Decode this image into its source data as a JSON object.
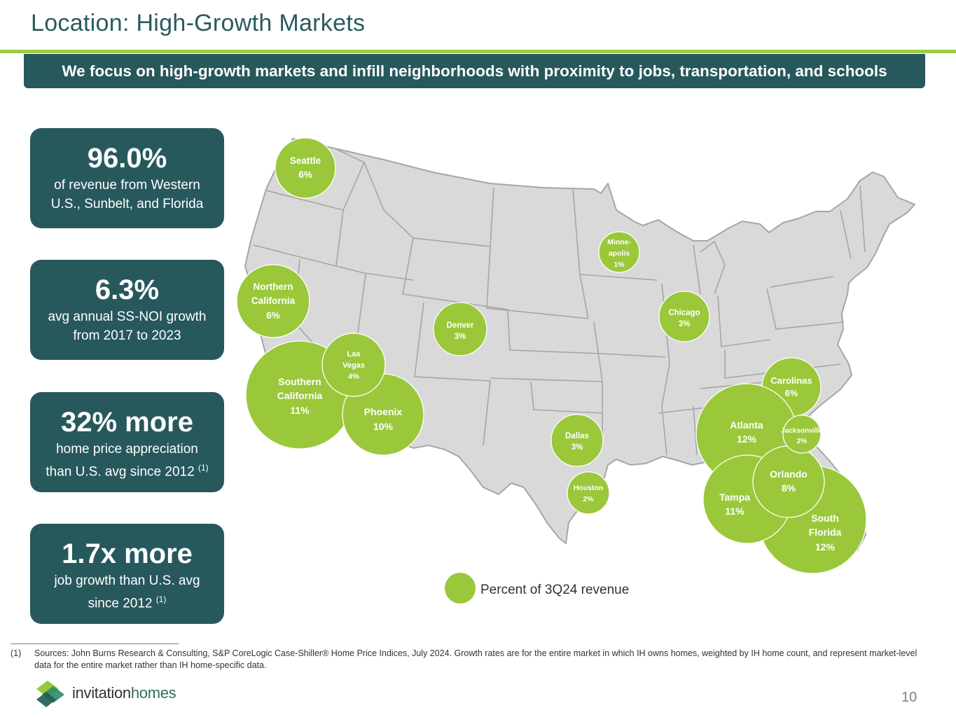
{
  "title": "Location: High-Growth Markets",
  "banner": "We focus on high-growth markets and infill neighborhoods with proximity to jobs, transportation, and schools",
  "stats": [
    {
      "value": "96.0%",
      "desc_lines": [
        "of revenue from Western",
        "U.S., Sunbelt, and Florida"
      ],
      "footnote_ref": ""
    },
    {
      "value": "6.3%",
      "desc_lines": [
        "avg annual SS-NOI growth",
        "from 2017 to 2023"
      ],
      "footnote_ref": ""
    },
    {
      "value": "32% more",
      "desc_lines": [
        "home price appreciation",
        "than U.S. avg since 2012"
      ],
      "footnote_ref": "(1)"
    },
    {
      "value": "1.7x more",
      "desc_lines": [
        "job growth than U.S. avg",
        "since 2012"
      ],
      "footnote_ref": "(1)"
    }
  ],
  "markets": [
    {
      "name_lines": [
        "Seattle"
      ],
      "pct": "6%"
    },
    {
      "name_lines": [
        "Northern",
        "California"
      ],
      "pct": "6%"
    },
    {
      "name_lines": [
        "Southern",
        "California"
      ],
      "pct": "11%"
    },
    {
      "name_lines": [
        "Phoenix"
      ],
      "pct": "10%"
    },
    {
      "name_lines": [
        "Las",
        "Vegas"
      ],
      "pct": "4%"
    },
    {
      "name_lines": [
        "Denver"
      ],
      "pct": "3%"
    },
    {
      "name_lines": [
        "Minne-",
        "apolis"
      ],
      "pct": "1%"
    },
    {
      "name_lines": [
        "Chicago"
      ],
      "pct": "3%"
    },
    {
      "name_lines": [
        "Dallas"
      ],
      "pct": "3%"
    },
    {
      "name_lines": [
        "Houston"
      ],
      "pct": "2%"
    },
    {
      "name_lines": [
        "Carolinas"
      ],
      "pct": "6%"
    },
    {
      "name_lines": [
        "Atlanta"
      ],
      "pct": "12%"
    },
    {
      "name_lines": [
        "South",
        "Florida"
      ],
      "pct": "12%"
    },
    {
      "name_lines": [
        "Tampa"
      ],
      "pct": "11%"
    },
    {
      "name_lines": [
        "Orlando"
      ],
      "pct": "8%"
    },
    {
      "name_lines": [
        "Jacksonville"
      ],
      "pct": "2%"
    }
  ],
  "legend": "Percent of 3Q24 revenue",
  "footnote": {
    "number": "(1)",
    "text": "Sources: John Burns Research & Consulting, S&P CoreLogic Case-Shiller® Home Price Indices, July 2024.  Growth rates are for the entire market in which IH owns homes, weighted by IH home count, and represent market-level data for the entire market rather than IH home-specific data."
  },
  "logo": {
    "word1": "invitation",
    "word2": "homes"
  },
  "page_number": "10",
  "colors": {
    "teal": "#27585c",
    "accent_green": "#9acd43",
    "bubble": "#9ac83a",
    "map_fill": "#d9d9d9",
    "map_stroke": "#a6a6a6"
  }
}
